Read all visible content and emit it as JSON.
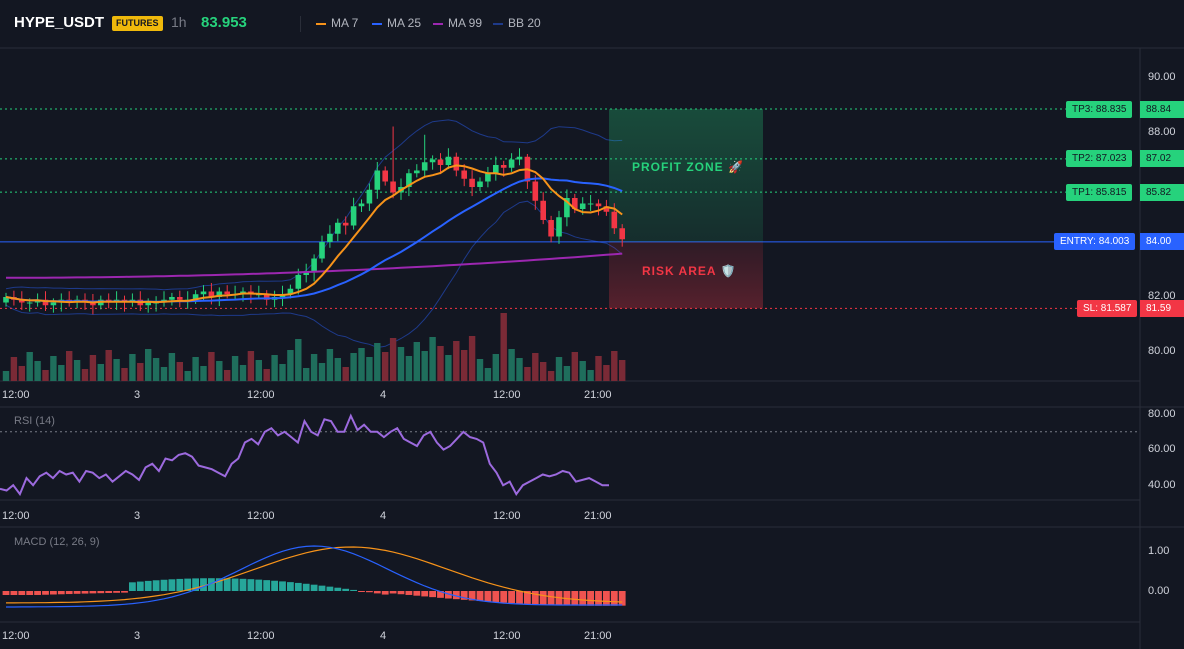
{
  "header": {
    "symbol": "HYPE_USDT",
    "badge": "FUTURES",
    "interval": "1h",
    "price": "83.953",
    "legend": [
      {
        "label": "MA 7",
        "color": "#f7931a"
      },
      {
        "label": "MA 25",
        "color": "#2962ff"
      },
      {
        "label": "MA 99",
        "color": "#9c27b0"
      },
      {
        "label": "BB 20",
        "color": "#1e3a8a"
      }
    ]
  },
  "colors": {
    "up": "#26d27c",
    "down": "#f23645",
    "vol_up": "#1f6e5c",
    "vol_down": "#7a2a36",
    "ma7": "#f7931a",
    "ma25": "#2962ff",
    "ma99": "#9c27b0",
    "bb": "#1e3a8a",
    "rsi": "#9c6ade",
    "macd": "#2962ff",
    "signal": "#f7931a",
    "hist_up": "#26a69a",
    "hist_down": "#ef5350",
    "entry": "#2962ff",
    "tp": "#26d27c",
    "sl": "#f23645"
  },
  "price_axis": {
    "ticks": [
      "90.00",
      "88.00",
      "82.00",
      "80.00"
    ],
    "tick_values": [
      90,
      88,
      82,
      80
    ],
    "range": [
      78.9,
      91.1
    ]
  },
  "time_axis": [
    "12:00",
    "3",
    "12:00",
    "4",
    "12:00",
    "21:00"
  ],
  "levels": {
    "tp3": {
      "value": 88.835,
      "label": "TP3: 88.835",
      "axis": "88.84"
    },
    "tp2": {
      "value": 87.023,
      "label": "TP2: 87.023",
      "axis": "87.02"
    },
    "tp1": {
      "value": 85.815,
      "label": "TP1: 85.815",
      "axis": "85.82"
    },
    "entry": {
      "value": 84.003,
      "label": "ENTRY: 84.003",
      "axis": "84.00"
    },
    "sl": {
      "value": 81.587,
      "label": "SL: 81.587",
      "axis": "81.59"
    }
  },
  "zones": {
    "profit": "PROFIT ZONE 🚀",
    "risk": "RISK AREA 🛡️"
  },
  "rsi": {
    "title": "RSI (14)",
    "ticks": [
      "80.00",
      "60.00",
      "40.00"
    ],
    "tick_values": [
      80,
      60,
      40
    ],
    "range": [
      31.5,
      83.5
    ],
    "values": [
      38,
      37,
      40,
      35,
      44,
      40,
      45,
      47,
      44,
      48,
      46,
      47,
      42,
      48,
      47,
      44,
      46,
      42,
      45,
      48,
      46,
      43,
      50,
      52,
      48,
      55,
      54,
      57,
      58,
      56,
      51,
      50,
      49,
      47,
      45,
      52,
      55,
      64,
      66,
      63,
      70,
      72,
      68,
      70,
      67,
      64,
      76,
      70,
      68,
      77,
      76,
      70,
      70,
      79,
      71,
      74,
      70,
      70,
      67,
      70,
      72,
      66,
      64,
      62,
      68,
      70,
      64,
      60,
      62,
      66,
      70,
      67,
      66,
      64,
      52,
      47,
      40,
      42,
      35,
      40,
      42,
      44,
      46,
      45,
      46,
      48,
      47,
      42,
      43,
      44,
      42,
      40,
      40
    ]
  },
  "macd": {
    "title": "MACD (12, 26, 9)",
    "ticks": [
      "1.00",
      "0.00"
    ],
    "tick_values": [
      1,
      0
    ],
    "range": [
      -0.55,
      1.35
    ]
  }
}
